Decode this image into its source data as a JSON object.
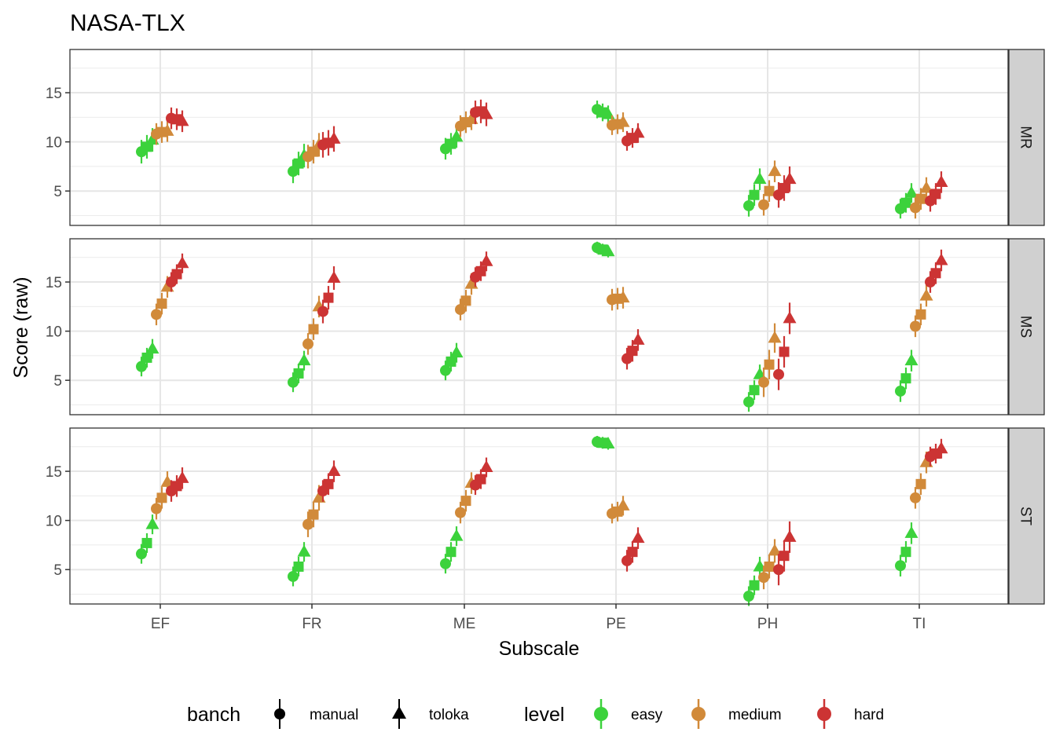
{
  "chart_data": {
    "type": "scatter",
    "title": "NASA-TLX",
    "xlabel": "Subscale",
    "ylabel": "Score (raw)",
    "categories": [
      "EF",
      "FR",
      "ME",
      "PE",
      "PH",
      "TI"
    ],
    "ylim": [
      1.5,
      19.4
    ],
    "yticks": [
      5,
      10,
      15
    ],
    "grid": true,
    "legend_position": "bottom",
    "legend": {
      "shape_title": "banch",
      "color_title": "level",
      "shapes": [
        {
          "key": "manual",
          "label": "manual",
          "shape": "circle"
        },
        {
          "key": "toloka",
          "label": "toloka",
          "shape": "triangle"
        }
      ],
      "levels": [
        {
          "key": "easy",
          "label": "easy",
          "color": "#3cd23c"
        },
        {
          "key": "medium",
          "label": "medium",
          "color": "#d18a3a"
        },
        {
          "key": "hard",
          "label": "hard",
          "color": "#cc3434"
        }
      ]
    },
    "panels": [
      {
        "strip": "MR",
        "easy": {
          "manual": [
            9.0,
            7.0,
            9.3,
            13.3,
            3.5,
            3.2
          ],
          "mid": [
            9.5,
            7.8,
            9.8,
            13.0,
            4.6,
            3.8
          ],
          "toloka": [
            10.2,
            8.6,
            10.5,
            12.8,
            6.2,
            4.8
          ],
          "err": [
            1.2,
            1.2,
            1.1,
            0.9,
            1.1,
            1.0
          ]
        },
        "medium": {
          "manual": [
            10.8,
            8.5,
            11.6,
            11.7,
            3.6,
            3.3
          ],
          "mid": [
            11.0,
            9.0,
            12.0,
            11.8,
            5.0,
            4.2
          ],
          "toloka": [
            11.1,
            9.7,
            12.3,
            12.0,
            7.0,
            5.3
          ],
          "err": [
            1.1,
            1.2,
            1.1,
            1.0,
            1.1,
            1.1
          ]
        },
        "hard": {
          "manual": [
            12.4,
            9.7,
            13.0,
            10.1,
            4.6,
            4.0
          ],
          "mid": [
            12.3,
            9.9,
            13.1,
            10.4,
            5.3,
            4.7
          ],
          "toloka": [
            12.1,
            10.3,
            12.8,
            10.9,
            6.2,
            5.9
          ],
          "err": [
            1.1,
            1.3,
            1.2,
            1.0,
            1.3,
            1.1
          ]
        }
      },
      {
        "strip": "MS",
        "easy": {
          "manual": [
            6.4,
            4.8,
            6.0,
            18.5,
            2.8,
            3.9
          ],
          "mid": [
            7.3,
            5.7,
            6.9,
            18.3,
            4.0,
            5.2
          ],
          "toloka": [
            8.2,
            7.0,
            7.8,
            18.1,
            5.6,
            7.0
          ],
          "err": [
            1.0,
            1.0,
            1.0,
            0.6,
            1.0,
            1.1
          ]
        },
        "medium": {
          "manual": [
            11.7,
            8.7,
            12.2,
            13.2,
            4.8,
            10.5
          ],
          "mid": [
            12.8,
            10.2,
            13.1,
            13.3,
            6.6,
            11.7
          ],
          "toloka": [
            14.5,
            12.5,
            14.8,
            13.4,
            9.3,
            13.6
          ],
          "err": [
            1.1,
            1.1,
            1.1,
            1.1,
            1.5,
            1.1
          ]
        },
        "hard": {
          "manual": [
            15.0,
            12.0,
            15.5,
            7.2,
            5.6,
            15.0
          ],
          "mid": [
            15.8,
            13.4,
            16.1,
            8.0,
            7.9,
            15.9
          ],
          "toloka": [
            16.9,
            15.4,
            17.1,
            9.1,
            11.3,
            17.2
          ],
          "err": [
            1.0,
            1.2,
            1.0,
            1.1,
            1.6,
            1.1
          ]
        }
      },
      {
        "strip": "ST",
        "easy": {
          "manual": [
            6.6,
            4.3,
            5.6,
            18.0,
            2.3,
            5.4
          ],
          "mid": [
            7.7,
            5.3,
            6.8,
            17.9,
            3.4,
            6.8
          ],
          "toloka": [
            9.6,
            6.8,
            8.4,
            17.8,
            5.3,
            8.7
          ],
          "err": [
            1.0,
            1.0,
            1.0,
            0.6,
            1.0,
            1.1
          ]
        },
        "medium": {
          "manual": [
            11.2,
            9.6,
            10.8,
            10.7,
            4.2,
            12.3
          ],
          "mid": [
            12.3,
            10.6,
            12.0,
            10.9,
            5.3,
            13.7
          ],
          "toloka": [
            13.9,
            12.3,
            13.8,
            11.5,
            6.9,
            15.9
          ],
          "err": [
            1.1,
            1.3,
            1.1,
            1.0,
            1.2,
            1.1
          ]
        },
        "hard": {
          "manual": [
            13.0,
            13.0,
            13.6,
            5.9,
            5.0,
            16.5
          ],
          "mid": [
            13.5,
            13.7,
            14.2,
            6.8,
            6.4,
            16.8
          ],
          "toloka": [
            14.3,
            15.0,
            15.4,
            8.2,
            8.3,
            17.3
          ],
          "err": [
            1.1,
            1.1,
            1.0,
            1.1,
            1.6,
            1.0
          ]
        }
      }
    ]
  }
}
